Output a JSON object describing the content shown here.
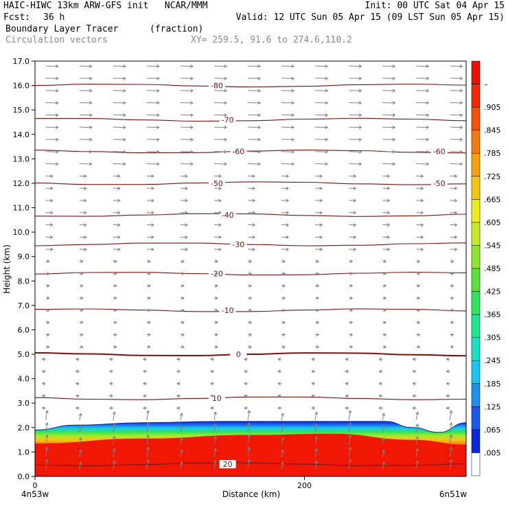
{
  "header": {
    "line1_left": "HAIC-HIWC 13km ARW-GFS init   NCAR/MMM",
    "line1_right": "Init: 00 UTC Sat 04 Apr 15",
    "fcst_label": "Fcst:",
    "fcst_value": "36 h",
    "valid": "Valid: 12 UTC Sun 05 Apr 15 (09 LST Sun 05 Apr 15)",
    "field_name": "Boundary Layer Tracer",
    "field_units": "(fraction)",
    "vector_label": "Circulation vectors",
    "xy_label": "XY= 259.5, 91.6 to 274.6,110.2"
  },
  "colors": {
    "contour": "#7a1010",
    "vector": "#808080",
    "colorbar": [
      "#ffffff",
      "#0a28d8",
      "#1a58ee",
      "#1d90f2",
      "#19c4ee",
      "#17e0c4",
      "#1ce690",
      "#2ee45a",
      "#58e23a",
      "#90e62c",
      "#c6ea26",
      "#eeea1e",
      "#f4c414",
      "#f6a00e",
      "#f67a0c",
      "#f45209",
      "#f22a06",
      "#ee1004"
    ]
  },
  "chart_data": {
    "type": "heatmap",
    "title": "Boundary Layer Tracer",
    "subtitle": "Circulation vectors",
    "xlabel": "Distance (km)",
    "ylabel": "Height (km)",
    "xlim": [
      0,
      320
    ],
    "ylim": [
      0,
      17
    ],
    "x_ticks": [
      "0",
      "200"
    ],
    "x_tick_values": [
      0,
      200
    ],
    "x_end_labels": [
      "4n53w",
      "6n51w"
    ],
    "y_ticks": [
      "0.0",
      "1.0",
      "2.0",
      "3.0",
      "4.0",
      "5.0",
      "6.0",
      "7.0",
      "8.0",
      "9.0",
      "10.0",
      "11.0",
      "12.0",
      "13.0",
      "14.0",
      "15.0",
      "16.0",
      "17.0"
    ],
    "colorbar_labels": [
      ".005",
      ".065",
      ".125",
      ".185",
      ".245",
      ".305",
      ".365",
      ".425",
      ".485",
      ".545",
      ".605",
      ".665",
      ".725",
      ".785",
      ".845",
      ".905",
      "–"
    ],
    "tracer_top_km": [
      [
        0,
        1.9
      ],
      [
        30,
        2.1
      ],
      [
        80,
        2.2
      ],
      [
        140,
        2.25
      ],
      [
        200,
        2.25
      ],
      [
        260,
        2.25
      ],
      [
        280,
        2.0
      ],
      [
        300,
        1.8
      ],
      [
        320,
        2.2
      ]
    ],
    "saturated_top_km": [
      [
        0,
        1.35
      ],
      [
        80,
        1.55
      ],
      [
        160,
        1.7
      ],
      [
        220,
        1.75
      ],
      [
        280,
        1.5
      ],
      [
        320,
        1.3
      ]
    ],
    "temperature_contours": [
      {
        "label": "-80",
        "height_km": 16.0
      },
      {
        "label": "-70",
        "height_km": 14.6
      },
      {
        "label": "-60",
        "height_km": 13.3
      },
      {
        "label": "-50",
        "height_km": 12.0
      },
      {
        "label": "-40",
        "height_km": 10.7
      },
      {
        "label": "-30",
        "height_km": 9.5
      },
      {
        "label": "-20",
        "height_km": 8.3
      },
      {
        "label": "-10",
        "height_km": 6.8
      },
      {
        "label": "0",
        "height_km": 5.0
      },
      {
        "label": "10",
        "height_km": 3.2
      },
      {
        "label": "20",
        "height_km": 0.5
      }
    ]
  }
}
